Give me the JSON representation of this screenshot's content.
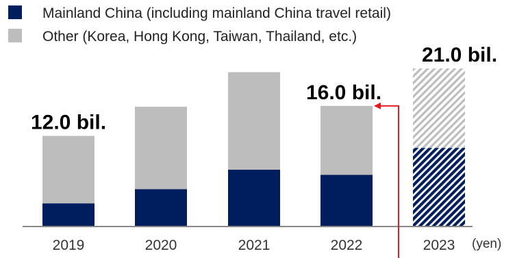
{
  "chart_data": {
    "type": "bar",
    "stacked": true,
    "categories": [
      "2019",
      "2020",
      "2021",
      "2022",
      "2023"
    ],
    "series": [
      {
        "name": "Mainland China (including mainland China travel retail)",
        "values": [
          3.0,
          4.9,
          7.5,
          6.8,
          10.4
        ],
        "color": "#001e5e"
      },
      {
        "name": "Other (Korea, Hong Kong, Taiwan, Thailand, etc.)",
        "values": [
          9.0,
          11.0,
          13.0,
          9.2,
          10.6
        ],
        "color": "#bdbdbd"
      }
    ],
    "projected_categories": [
      "2023"
    ],
    "annotations": [
      {
        "category": "2019",
        "text": "12.0 bil."
      },
      {
        "category": "2022",
        "text": "16.0 bil.",
        "target_total": 16.0,
        "dashed_box": true,
        "box_color": "#e8191d"
      },
      {
        "category": "2023",
        "text": "21.0 bil."
      }
    ],
    "unit_label": "(yen)",
    "legend_position": "top-left",
    "grid": false,
    "ylim": [
      0,
      21.0
    ]
  }
}
